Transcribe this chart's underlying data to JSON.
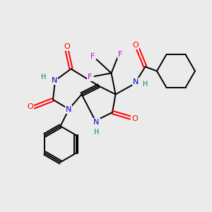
{
  "background_color": "#ebebeb",
  "bond_color": "#000000",
  "atom_colors": {
    "N": "#0000cc",
    "O": "#ff0000",
    "F": "#cc00cc",
    "C": "#000000",
    "H": "#008080"
  },
  "figsize": [
    3.0,
    3.0
  ],
  "dpi": 100
}
